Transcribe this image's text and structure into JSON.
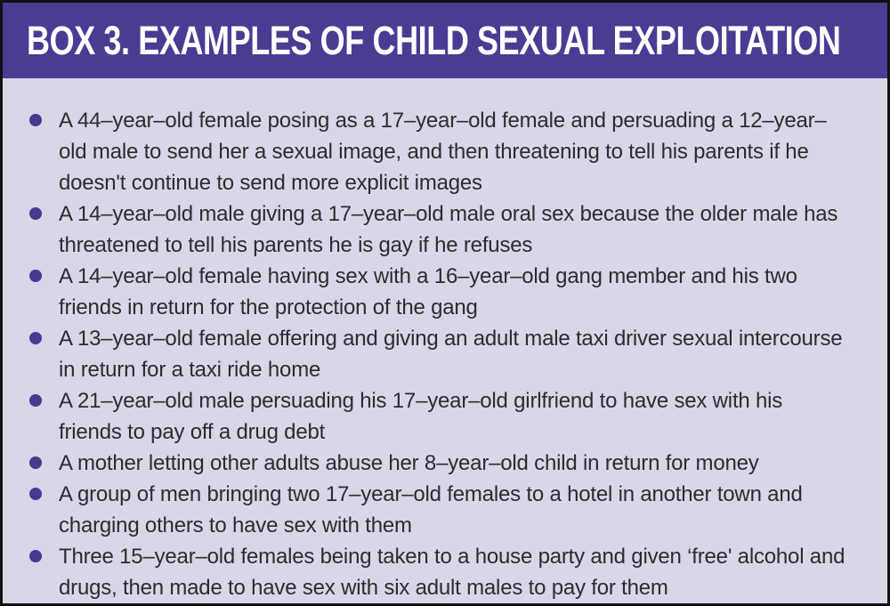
{
  "box": {
    "title": "BOX 3. EXAMPLES OF CHILD SEXUAL EXPLOITATION",
    "items": [
      "A 44–year–old female posing as a 17–year–old female and persuading a 12–year–old male to send her a sexual image, and then threatening to tell his parents if he doesn't continue to send more explicit images",
      "A 14–year–old male giving a 17–year–old male oral sex because the older male has threatened to tell his parents he is gay if he refuses",
      "A 14–year–old female having sex with a 16–year–old gang member and his two friends in return for the protection of the gang",
      "A 13–year–old female offering and giving an adult male taxi driver sexual intercourse in return for a taxi ride home",
      "A 21–year–old male persuading his 17–year–old girlfriend to have sex with his friends to pay off a drug debt",
      "A mother letting other adults abuse her 8–year–old child in return for money",
      "A group of men bringing two 17–year–old females to a hotel in another town and charging others to have sex with them",
      "Three 15–year–old females being taken to a house party and given ‘free' alcohol and drugs, then made to have sex with six adult males to pay for them"
    ],
    "colors": {
      "header_bg": "#4a3b93",
      "body_bg": "#d9d6e8",
      "bullet": "#46398f",
      "title_text": "#ffffff",
      "body_text": "#2d2a33",
      "border": "#111111"
    }
  }
}
